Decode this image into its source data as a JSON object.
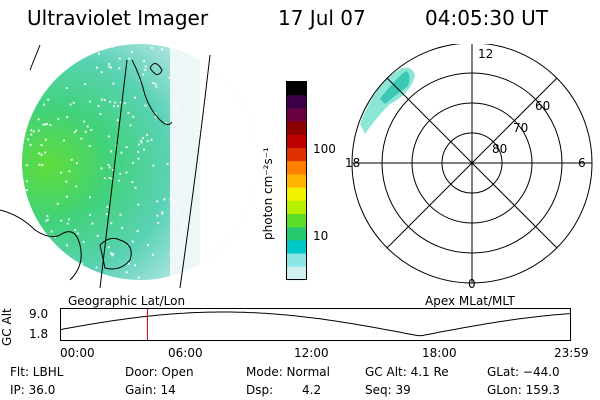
{
  "header": {
    "instrument": "Ultraviolet Imager",
    "date": "17 Jul 07",
    "time": "04:05:30 UT"
  },
  "colorbar": {
    "unit": "photon cm⁻²s⁻¹",
    "ticks": [
      "100",
      "10"
    ],
    "colors": [
      "#000000",
      "#3a0046",
      "#6a0042",
      "#8e0000",
      "#bf0000",
      "#e03000",
      "#ff8000",
      "#ffb400",
      "#f0f000",
      "#b4f000",
      "#5adc28",
      "#28c86e",
      "#00c8c8",
      "#8ce6e6",
      "#d2f0f0"
    ]
  },
  "panels": {
    "left_label": "Geographic Lat/Lon",
    "right_label": "Apex MLat/MLT"
  },
  "polar": {
    "lat_labels": [
      "60",
      "70",
      "80"
    ],
    "mlt_labels": {
      "top": "12",
      "bottom": "0",
      "left": "18",
      "right": "6"
    }
  },
  "altitude_plot": {
    "ylabel": "GC Alt",
    "yticks": [
      "9.0",
      "1.8"
    ],
    "xticks": [
      "00:00",
      "06:00",
      "12:00",
      "18:00",
      "23:59"
    ],
    "current_time": "04:05:30"
  },
  "info": {
    "flt": "Flt: LBHL",
    "door": "Door: Open",
    "mode": "Mode: Normal",
    "gc_alt": "GC Alt: 4.1 Re",
    "glat": "GLat: −44.0",
    "ip": "IP: 36.0",
    "gain": "Gain: 14",
    "dsp_label": "Dsp:",
    "dsp_value": "4.2",
    "seq": "Seq: 39",
    "glon": "GLon: 159.3"
  }
}
